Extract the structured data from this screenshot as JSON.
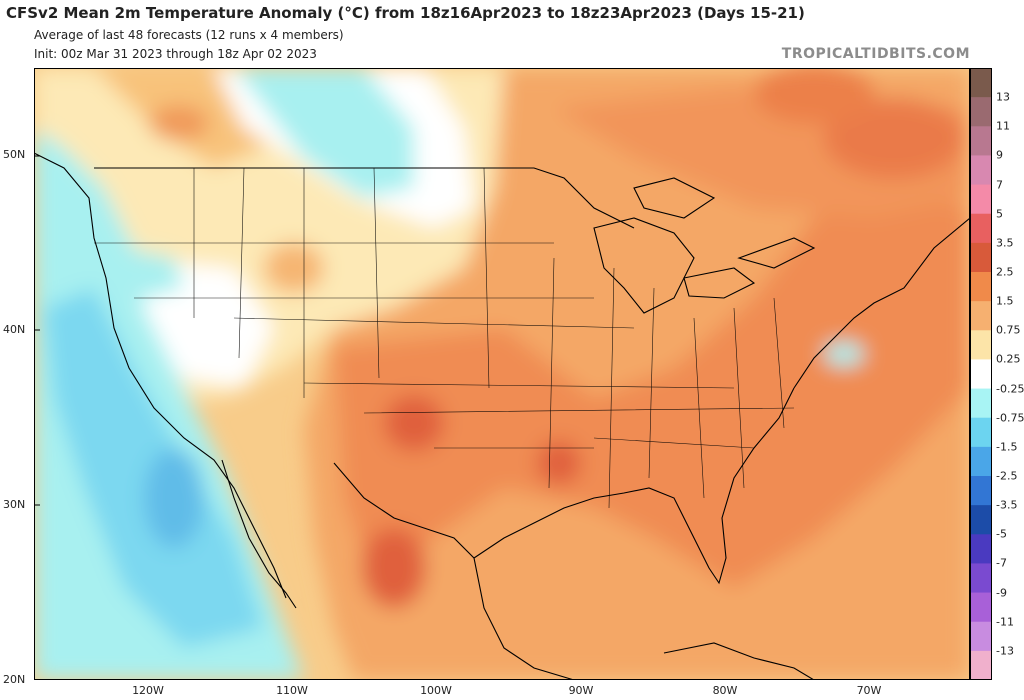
{
  "header": {
    "title": "CFSv2 Mean 2m Temperature Anomaly (°C) from 18z16Apr2023 to 18z23Apr2023 (Days 15-21)",
    "line2": "Average of last 48 forecasts (12 runs x 4 members)",
    "line3": "Init: 00z Mar 31 2023 through 18z Apr 02 2023",
    "source": "TROPICALTIDBITS.COM"
  },
  "map": {
    "lat_labels": [
      "50N",
      "40N",
      "30N",
      "20N"
    ],
    "lon_labels": [
      "120W",
      "110W",
      "100W",
      "90W",
      "80W",
      "70W"
    ]
  },
  "colorbar": {
    "labels": [
      "13",
      "11",
      "9",
      "7",
      "5",
      "3.5",
      "2.5",
      "1.5",
      "0.75",
      "0.25",
      "-0.25",
      "-0.75",
      "-1.5",
      "-2.5",
      "-3.5",
      "-5",
      "-7",
      "-9",
      "-11",
      "-13"
    ],
    "colors": [
      "#7a5a4c",
      "#9a6a70",
      "#b87890",
      "#d888b0",
      "#f48aa8",
      "#e86060",
      "#d85a3a",
      "#f08a4a",
      "#f6b070",
      "#fce4a8",
      "#ffffff",
      "#a8f4f4",
      "#6cd4f0",
      "#4aa6e8",
      "#3276d4",
      "#1c4ca8",
      "#4a3ac0",
      "#7a4ad0",
      "#a860d8",
      "#c88ce0",
      "#f0b0cc"
    ]
  }
}
